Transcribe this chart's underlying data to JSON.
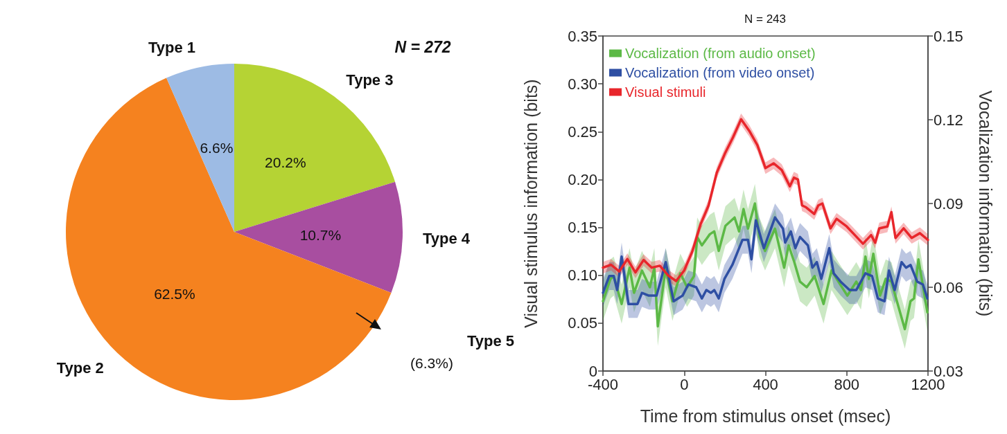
{
  "chart_data": [
    {
      "type": "pie",
      "categories": [
        "Type 3",
        "Type 4",
        "Type 2",
        "Type 1"
      ],
      "values": [
        20.2,
        10.7,
        62.5,
        6.6
      ],
      "colors": [
        "#b5d334",
        "#a84ea0",
        "#f5821f",
        "#9dbbe4"
      ],
      "value_labels": [
        "20.2%",
        "10.7%",
        "62.5%",
        "6.6%"
      ],
      "annotations": [
        "N = 272",
        "Type 5",
        "(6.3%)"
      ]
    },
    {
      "type": "line",
      "title": "N = 243",
      "xlabel": "Time from stimulus onset (msec)",
      "ylabel": "Visual stimulus information (bits)",
      "y2label": "Vocalization information (bits)",
      "xlim": [
        -400,
        1200
      ],
      "xticks": [
        -400,
        0,
        400,
        800,
        1200
      ],
      "ylim": [
        0,
        0.35
      ],
      "yticks": [
        0,
        0.05,
        {
          "value": 0.1,
          "label": "0.10"
        },
        0.15,
        {
          "value": 0.2,
          "label": "0.20"
        },
        0.25,
        {
          "value": 0.3,
          "label": "0.30"
        },
        0.35
      ],
      "y2lim": [
        0.03,
        0.15
      ],
      "y2ticks": [
        0.03,
        0.06,
        0.09,
        0.12,
        0.15
      ],
      "legend": "top left",
      "marker": "none",
      "grid": false,
      "series": [
        {
          "name": "Vocalization (from audio onset)",
          "color": "#5cb946",
          "axis": "y2",
          "x": [
            -400,
            -363,
            -347,
            -308,
            -269,
            -247,
            -208,
            -169,
            -147,
            -130,
            -91,
            -58,
            -19,
            14,
            48,
            64,
            87,
            126,
            148,
            170,
            203,
            248,
            270,
            292,
            314,
            348,
            370,
            398,
            447,
            492,
            514,
            542,
            570,
            603,
            642,
            686,
            725,
            759,
            803,
            847,
            870,
            892,
            909,
            931,
            964,
            992,
            1020,
            1047,
            1086,
            1114,
            1131,
            1153,
            1197
          ],
          "values": [
            0.055,
            0.063,
            0.064,
            0.054,
            0.067,
            0.058,
            0.066,
            0.06,
            0.067,
            0.046,
            0.067,
            0.055,
            0.065,
            0.06,
            0.064,
            0.078,
            0.075,
            0.079,
            0.08,
            0.073,
            0.082,
            0.085,
            0.08,
            0.088,
            0.081,
            0.09,
            0.078,
            0.073,
            0.081,
            0.067,
            0.075,
            0.069,
            0.062,
            0.06,
            0.064,
            0.054,
            0.066,
            0.062,
            0.057,
            0.062,
            0.059,
            0.071,
            0.063,
            0.072,
            0.057,
            0.063,
            0.062,
            0.055,
            0.045,
            0.055,
            0.056,
            0.07,
            0.051
          ],
          "lower": [
            0.048,
            0.056,
            0.057,
            0.047,
            0.06,
            0.051,
            0.059,
            0.053,
            0.06,
            0.039,
            0.06,
            0.048,
            0.058,
            0.053,
            0.057,
            0.071,
            0.068,
            0.072,
            0.073,
            0.066,
            0.075,
            0.078,
            0.073,
            0.081,
            0.074,
            0.083,
            0.071,
            0.066,
            0.074,
            0.06,
            0.068,
            0.062,
            0.055,
            0.053,
            0.057,
            0.047,
            0.059,
            0.055,
            0.05,
            0.055,
            0.052,
            0.064,
            0.056,
            0.065,
            0.05,
            0.056,
            0.055,
            0.048,
            0.038,
            0.048,
            0.049,
            0.063,
            0.044
          ],
          "upper": [
            0.062,
            0.07,
            0.071,
            0.061,
            0.074,
            0.065,
            0.073,
            0.067,
            0.074,
            0.053,
            0.074,
            0.062,
            0.072,
            0.067,
            0.071,
            0.085,
            0.082,
            0.086,
            0.087,
            0.08,
            0.089,
            0.092,
            0.087,
            0.095,
            0.088,
            0.097,
            0.085,
            0.08,
            0.088,
            0.074,
            0.082,
            0.076,
            0.069,
            0.067,
            0.071,
            0.061,
            0.073,
            0.069,
            0.064,
            0.069,
            0.066,
            0.078,
            0.07,
            0.079,
            0.064,
            0.07,
            0.069,
            0.062,
            0.052,
            0.062,
            0.063,
            0.077,
            0.058
          ]
        },
        {
          "name": "Vocalization (from video onset)",
          "color": "#2e4fa3",
          "axis": "y2",
          "x": [
            -400,
            -369,
            -347,
            -330,
            -308,
            -274,
            -230,
            -208,
            -174,
            -136,
            -91,
            -52,
            -8,
            20,
            59,
            87,
            109,
            131,
            148,
            170,
            198,
            237,
            287,
            314,
            331,
            353,
            392,
            447,
            486,
            497,
            525,
            547,
            570,
            609,
            631,
            653,
            675,
            714,
            736,
            770,
            814,
            847,
            892,
            925,
            953,
            986,
            1008,
            1036,
            1070,
            1092,
            1114,
            1147,
            1175,
            1197
          ],
          "values": [
            0.058,
            0.064,
            0.064,
            0.059,
            0.071,
            0.054,
            0.054,
            0.058,
            0.057,
            0.057,
            0.069,
            0.055,
            0.057,
            0.061,
            0.06,
            0.056,
            0.059,
            0.058,
            0.059,
            0.056,
            0.063,
            0.068,
            0.077,
            0.077,
            0.07,
            0.084,
            0.074,
            0.085,
            0.081,
            0.076,
            0.08,
            0.074,
            0.078,
            0.075,
            0.067,
            0.069,
            0.063,
            0.074,
            0.065,
            0.062,
            0.059,
            0.059,
            0.065,
            0.064,
            0.056,
            0.055,
            0.066,
            0.059,
            0.069,
            0.067,
            0.068,
            0.062,
            0.061,
            0.056
          ],
          "lower": [
            0.053,
            0.059,
            0.059,
            0.054,
            0.066,
            0.049,
            0.049,
            0.053,
            0.052,
            0.052,
            0.064,
            0.05,
            0.052,
            0.056,
            0.055,
            0.051,
            0.054,
            0.053,
            0.054,
            0.051,
            0.058,
            0.063,
            0.072,
            0.072,
            0.065,
            0.079,
            0.069,
            0.08,
            0.076,
            0.071,
            0.075,
            0.069,
            0.073,
            0.07,
            0.062,
            0.064,
            0.058,
            0.069,
            0.06,
            0.057,
            0.054,
            0.054,
            0.06,
            0.059,
            0.051,
            0.05,
            0.061,
            0.054,
            0.064,
            0.062,
            0.063,
            0.057,
            0.056,
            0.051
          ],
          "upper": [
            0.063,
            0.069,
            0.069,
            0.064,
            0.076,
            0.059,
            0.059,
            0.063,
            0.062,
            0.062,
            0.074,
            0.06,
            0.062,
            0.066,
            0.065,
            0.061,
            0.064,
            0.063,
            0.064,
            0.061,
            0.068,
            0.073,
            0.082,
            0.082,
            0.075,
            0.089,
            0.079,
            0.09,
            0.086,
            0.081,
            0.085,
            0.079,
            0.083,
            0.08,
            0.072,
            0.074,
            0.068,
            0.079,
            0.07,
            0.067,
            0.064,
            0.064,
            0.07,
            0.069,
            0.061,
            0.06,
            0.071,
            0.064,
            0.074,
            0.072,
            0.073,
            0.067,
            0.066,
            0.061
          ]
        },
        {
          "name": "Visual stimuli",
          "color": "#e8262b",
          "x": [
            -400,
            -360,
            -320,
            -280,
            -240,
            -200,
            -160,
            -120,
            -80,
            -40,
            0,
            40,
            80,
            120,
            160,
            200,
            240,
            280,
            320,
            360,
            400,
            440,
            480,
            520,
            540,
            560,
            580,
            600,
            640,
            660,
            680,
            720,
            750,
            800,
            840,
            880,
            920,
            940,
            960,
            1000,
            1020,
            1040,
            1080,
            1120,
            1160,
            1200
          ],
          "values": [
            0.108,
            0.111,
            0.104,
            0.117,
            0.103,
            0.116,
            0.108,
            0.11,
            0.1,
            0.094,
            0.105,
            0.125,
            0.153,
            0.173,
            0.207,
            0.227,
            0.244,
            0.263,
            0.251,
            0.236,
            0.212,
            0.217,
            0.21,
            0.193,
            0.202,
            0.2,
            0.173,
            0.171,
            0.164,
            0.173,
            0.175,
            0.149,
            0.159,
            0.151,
            0.142,
            0.133,
            0.142,
            0.134,
            0.149,
            0.151,
            0.166,
            0.139,
            0.149,
            0.139,
            0.144,
            0.137
          ],
          "lower": [
            0.102,
            0.105,
            0.098,
            0.111,
            0.097,
            0.11,
            0.102,
            0.104,
            0.094,
            0.088,
            0.099,
            0.119,
            0.147,
            0.167,
            0.201,
            0.221,
            0.238,
            0.257,
            0.245,
            0.23,
            0.206,
            0.211,
            0.204,
            0.187,
            0.196,
            0.194,
            0.167,
            0.165,
            0.158,
            0.167,
            0.169,
            0.143,
            0.153,
            0.145,
            0.136,
            0.127,
            0.136,
            0.128,
            0.143,
            0.145,
            0.16,
            0.133,
            0.143,
            0.133,
            0.138,
            0.131
          ],
          "upper": [
            0.114,
            0.117,
            0.11,
            0.123,
            0.109,
            0.122,
            0.114,
            0.116,
            0.106,
            0.1,
            0.111,
            0.131,
            0.159,
            0.179,
            0.213,
            0.233,
            0.25,
            0.269,
            0.257,
            0.242,
            0.218,
            0.223,
            0.216,
            0.199,
            0.208,
            0.206,
            0.179,
            0.177,
            0.17,
            0.179,
            0.181,
            0.155,
            0.165,
            0.157,
            0.148,
            0.139,
            0.148,
            0.14,
            0.155,
            0.157,
            0.172,
            0.145,
            0.155,
            0.145,
            0.15,
            0.143
          ]
        }
      ]
    }
  ]
}
